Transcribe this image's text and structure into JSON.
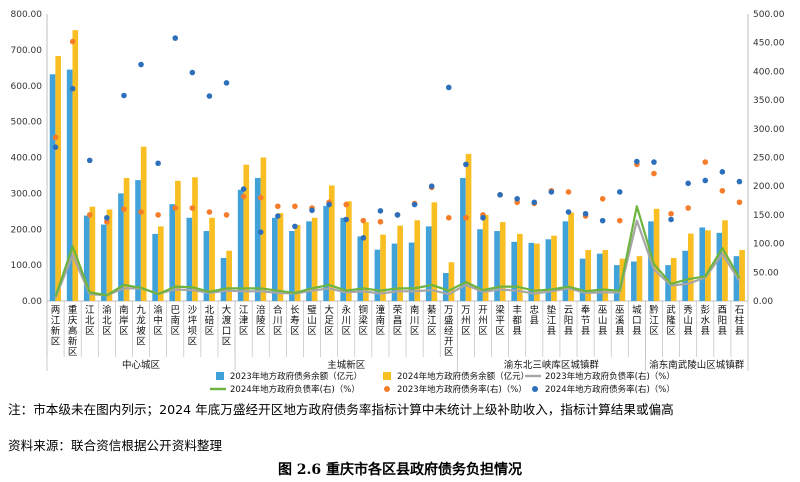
{
  "chart_data": {
    "type": "bar",
    "title": "",
    "left_axis": {
      "min": 0,
      "max": 800,
      "ticks": [
        "0.00",
        "100.00",
        "200.00",
        "300.00",
        "400.00",
        "500.00",
        "600.00",
        "700.00",
        "800.00"
      ]
    },
    "right_axis": {
      "min": 0,
      "max": 500,
      "ticks": [
        "0.00",
        "50.00",
        "100.00",
        "150.00",
        "200.00",
        "250.00",
        "300.00",
        "350.00",
        "400.00",
        "450.00",
        "500.00"
      ]
    },
    "categories": [
      {
        "label": "两江新区",
        "chars": [
          "两",
          "江",
          "新",
          "区"
        ]
      },
      {
        "label": "重庆高新区",
        "chars": [
          "重",
          "庆",
          "高",
          "新",
          "区"
        ]
      },
      {
        "label": "江北区",
        "chars": [
          "江",
          "北",
          "区"
        ]
      },
      {
        "label": "渝北区",
        "chars": [
          "渝",
          "北",
          "区"
        ]
      },
      {
        "label": "南岸区",
        "chars": [
          "南",
          "岸",
          "区"
        ]
      },
      {
        "label": "九龙坡区",
        "chars": [
          "九",
          "龙",
          "坡",
          "区"
        ]
      },
      {
        "label": "渝中区",
        "chars": [
          "渝",
          "中",
          "区"
        ]
      },
      {
        "label": "巴南区",
        "chars": [
          "巴",
          "南",
          "区"
        ]
      },
      {
        "label": "沙坪坝区",
        "chars": [
          "沙",
          "坪",
          "坝",
          "区"
        ]
      },
      {
        "label": "北碚区",
        "chars": [
          "北",
          "碚",
          "区"
        ]
      },
      {
        "label": "大渡口区",
        "chars": [
          "大",
          "渡",
          "口",
          "区"
        ]
      },
      {
        "label": "江津区",
        "chars": [
          "江",
          "津",
          "区"
        ]
      },
      {
        "label": "涪陵区",
        "chars": [
          "涪",
          "陵",
          "区"
        ]
      },
      {
        "label": "合川区",
        "chars": [
          "合",
          "川",
          "区"
        ]
      },
      {
        "label": "长寿区",
        "chars": [
          "长",
          "寿",
          "区"
        ]
      },
      {
        "label": "璧山区",
        "chars": [
          "璧",
          "山",
          "区"
        ]
      },
      {
        "label": "大足区",
        "chars": [
          "大",
          "足",
          "区"
        ]
      },
      {
        "label": "永川区",
        "chars": [
          "永",
          "川",
          "区"
        ]
      },
      {
        "label": "铜梁区",
        "chars": [
          "铜",
          "梁",
          "区"
        ]
      },
      {
        "label": "潼南区",
        "chars": [
          "潼",
          "南",
          "区"
        ]
      },
      {
        "label": "荣昌区",
        "chars": [
          "荣",
          "昌",
          "区"
        ]
      },
      {
        "label": "南川区",
        "chars": [
          "南",
          "川",
          "区"
        ]
      },
      {
        "label": "綦江区",
        "chars": [
          "綦",
          "江",
          "区"
        ]
      },
      {
        "label": "万盛经开区",
        "chars": [
          "万",
          "盛",
          "经",
          "开",
          "区"
        ]
      },
      {
        "label": "万州区",
        "chars": [
          "万",
          "州",
          "区"
        ]
      },
      {
        "label": "开州区",
        "chars": [
          "开",
          "州",
          "区"
        ]
      },
      {
        "label": "梁平区",
        "chars": [
          "梁",
          "平",
          "区"
        ]
      },
      {
        "label": "丰都县",
        "chars": [
          "丰",
          "都",
          "县"
        ]
      },
      {
        "label": "忠县",
        "chars": [
          "忠",
          "县"
        ]
      },
      {
        "label": "垫江县",
        "chars": [
          "垫",
          "江",
          "县"
        ]
      },
      {
        "label": "云阳县",
        "chars": [
          "云",
          "阳",
          "县"
        ]
      },
      {
        "label": "奉节县",
        "chars": [
          "奉",
          "节",
          "县"
        ]
      },
      {
        "label": "巫山县",
        "chars": [
          "巫",
          "山",
          "县"
        ]
      },
      {
        "label": "巫溪县",
        "chars": [
          "巫",
          "溪",
          "县"
        ]
      },
      {
        "label": "城口县",
        "chars": [
          "城",
          "口",
          "县"
        ]
      },
      {
        "label": "黔江区",
        "chars": [
          "黔",
          "江",
          "区"
        ]
      },
      {
        "label": "武隆区",
        "chars": [
          "武",
          "隆",
          "区"
        ]
      },
      {
        "label": "秀山县",
        "chars": [
          "秀",
          "山",
          "县"
        ]
      },
      {
        "label": "彭水县",
        "chars": [
          "彭",
          "水",
          "县"
        ]
      },
      {
        "label": "酉阳县",
        "chars": [
          "酉",
          "阳",
          "县"
        ]
      },
      {
        "label": "石柱县",
        "chars": [
          "石",
          "柱",
          "县"
        ]
      }
    ],
    "groups": [
      {
        "label": "中心城区",
        "start": 0,
        "end": 10
      },
      {
        "label": "主城新区",
        "start": 11,
        "end": 23
      },
      {
        "label": "渝东北三峡库区城镇群",
        "start": 24,
        "end": 34
      },
      {
        "label": "渝东南武陵山区城镇群",
        "start": 35,
        "end": 40
      }
    ],
    "series": [
      {
        "name": "2023年地方政府债务余额（亿元）",
        "kind": "bar",
        "axis": "left",
        "color": "#41A2DA",
        "values": [
          632,
          645,
          238,
          213,
          300,
          337,
          187,
          270,
          232,
          195,
          120,
          310,
          343,
          232,
          195,
          222,
          265,
          232,
          180,
          143,
          160,
          163,
          208,
          78,
          343,
          200,
          195,
          165,
          162,
          172,
          222,
          118,
          132,
          100,
          110,
          222,
          100,
          140,
          205,
          190,
          125
        ]
      },
      {
        "name": "2024年地方政府债务余额（亿元）",
        "kind": "bar",
        "axis": "left",
        "color": "#F8BE22",
        "values": [
          683,
          755,
          263,
          255,
          343,
          430,
          208,
          335,
          345,
          232,
          140,
          380,
          400,
          245,
          212,
          232,
          322,
          278,
          220,
          185,
          210,
          225,
          275,
          108,
          410,
          240,
          220,
          187,
          160,
          182,
          247,
          142,
          142,
          118,
          125,
          257,
          120,
          188,
          197,
          225,
          142
        ]
      },
      {
        "name": "2023年地方政府负债率(右)（%）",
        "kind": "line",
        "axis": "right",
        "color": "#A6A6A6",
        "values": [
          6,
          80,
          12,
          10,
          22,
          22,
          13,
          20,
          19,
          14,
          18,
          17,
          17,
          14,
          13,
          18,
          22,
          15,
          17,
          13,
          17,
          17,
          19,
          12,
          28,
          16,
          20,
          18,
          13,
          17,
          22,
          14,
          15,
          15,
          140,
          55,
          27,
          30,
          41,
          82,
          35
        ]
      },
      {
        "name": "2024年地方政府负债率(右)（%）",
        "kind": "line",
        "axis": "right",
        "color": "#6DB33F",
        "values": [
          8,
          95,
          15,
          10,
          28,
          23,
          12,
          25,
          24,
          16,
          22,
          22,
          22,
          18,
          14,
          22,
          28,
          18,
          22,
          18,
          22,
          22,
          28,
          18,
          33,
          19,
          25,
          25,
          18,
          20,
          25,
          17,
          20,
          18,
          165,
          64,
          30,
          38,
          43,
          92,
          40
        ]
      },
      {
        "name": "2023年地方政府债务率(右)（%）",
        "kind": "scatter",
        "axis": "right",
        "color": "#F47C2A",
        "values": [
          285,
          452,
          150,
          138,
          160,
          155,
          150,
          162,
          162,
          155,
          150,
          182,
          180,
          165,
          165,
          162,
          172,
          168,
          140,
          138,
          150,
          170,
          198,
          145,
          145,
          150,
          185,
          172,
          170,
          192,
          190,
          148,
          178,
          140,
          238,
          222,
          152,
          162,
          242,
          192,
          172
        ]
      },
      {
        "name": "2024年地方政府债务率(右)（%）",
        "kind": "scatter",
        "axis": "right",
        "color": "#2E6FBC",
        "values": [
          268,
          370,
          245,
          145,
          358,
          412,
          240,
          458,
          398,
          357,
          380,
          195,
          120,
          148,
          130,
          158,
          168,
          142,
          110,
          157,
          150,
          168,
          200,
          372,
          238,
          145,
          185,
          178,
          172,
          190,
          155,
          152,
          140,
          190,
          243,
          242,
          142,
          205,
          210,
          225,
          208
        ]
      }
    ]
  },
  "notes": {
    "line1": "注：市本级未在图内列示；2024 年底万盛经开区地方政府债务率指标计算中未统计上级补助收入，指标计算结果或偏高",
    "line2": "资料来源：联合资信根据公开资料整理"
  },
  "caption": "图 2.6  重庆市各区县政府债务负担情况"
}
